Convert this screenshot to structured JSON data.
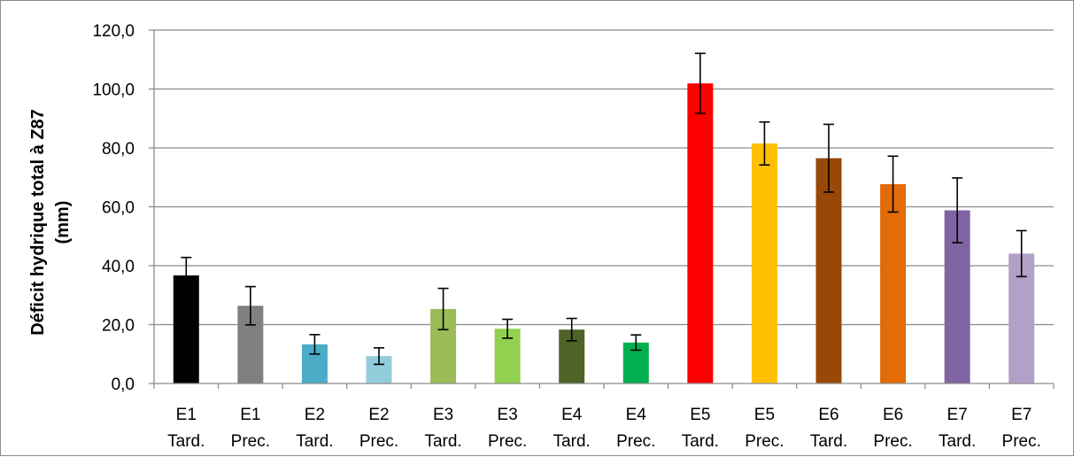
{
  "chart_data": {
    "type": "bar",
    "title": "",
    "xlabel": "",
    "ylabel_lines": [
      "Déficit hydrique total à Z87",
      "(mm)"
    ],
    "ylim": [
      0,
      120
    ],
    "yticks": [
      0,
      20,
      40,
      60,
      80,
      100,
      120
    ],
    "ytick_labels": [
      "0,0",
      "20,0",
      "40,0",
      "60,0",
      "80,0",
      "100,0",
      "120,0"
    ],
    "grid": "horizontal",
    "legend": "none",
    "categories": [
      [
        "E1",
        "Tard."
      ],
      [
        "E1",
        "Prec."
      ],
      [
        "E2",
        "Tard."
      ],
      [
        "E2",
        "Prec."
      ],
      [
        "E3",
        "Tard."
      ],
      [
        "E3",
        "Prec."
      ],
      [
        "E4",
        "Tard."
      ],
      [
        "E4",
        "Prec."
      ],
      [
        "E5",
        "Tard."
      ],
      [
        "E5",
        "Prec."
      ],
      [
        "E6",
        "Tard."
      ],
      [
        "E6",
        "Prec."
      ],
      [
        "E7",
        "Tard."
      ],
      [
        "E7",
        "Prec."
      ]
    ],
    "values": [
      36.7,
      26.4,
      13.3,
      9.3,
      25.3,
      18.6,
      18.3,
      13.9,
      101.9,
      81.5,
      76.5,
      67.7,
      58.8,
      44.1
    ],
    "errors": [
      6.1,
      6.5,
      3.3,
      2.8,
      7.0,
      3.2,
      3.8,
      2.6,
      10.2,
      7.3,
      11.5,
      9.5,
      11.0,
      7.8
    ],
    "colors": [
      "#000000",
      "#808080",
      "#4bacc6",
      "#92cddc",
      "#9bbb59",
      "#92d050",
      "#4f6228",
      "#00b050",
      "#ff0000",
      "#ffc000",
      "#984807",
      "#e36c09",
      "#8064a2",
      "#b2a1c7"
    ]
  }
}
